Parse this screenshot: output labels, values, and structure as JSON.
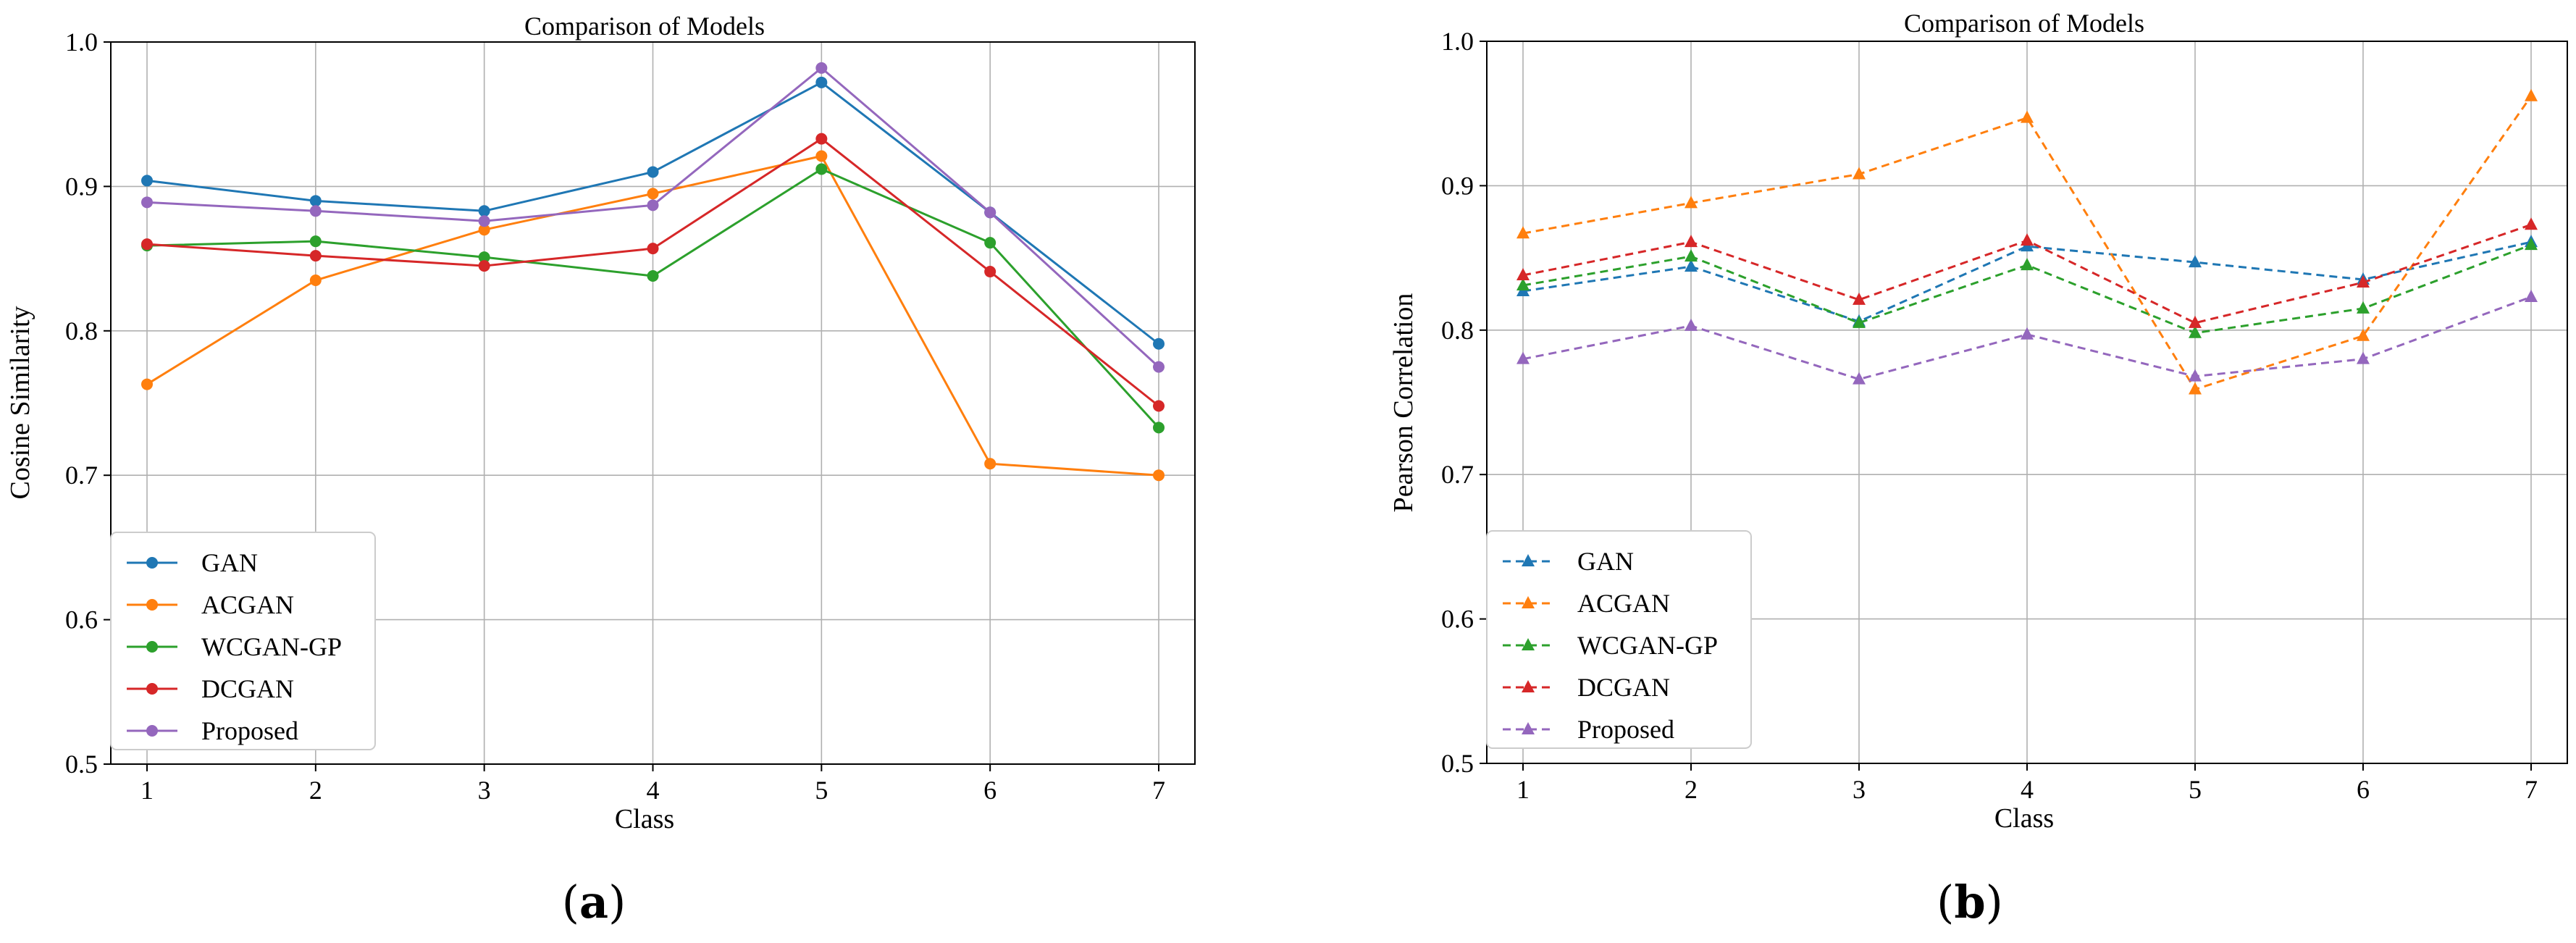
{
  "chart_data": [
    {
      "type": "line",
      "caption_open": "(",
      "caption_letter": "a",
      "caption_close": ")",
      "title": "Comparison of Models",
      "xlabel": "Class",
      "ylabel": "Cosine Similarity",
      "x": [
        1,
        2,
        3,
        4,
        5,
        6,
        7
      ],
      "xticks": [
        "1",
        "2",
        "3",
        "4",
        "5",
        "6",
        "7"
      ],
      "ylim": [
        0.5,
        1.0
      ],
      "yticks": [
        "0.5",
        "0.6",
        "0.7",
        "0.8",
        "0.9",
        "1.0"
      ],
      "grid": true,
      "legend_position": "lower-left",
      "line_style": "solid",
      "marker": "circle",
      "series": [
        {
          "name": "GAN",
          "color": "#1f77b4",
          "values": [
            0.904,
            0.89,
            0.883,
            0.91,
            0.972,
            0.882,
            0.791
          ]
        },
        {
          "name": "ACGAN",
          "color": "#ff7f0e",
          "values": [
            0.763,
            0.835,
            0.87,
            0.895,
            0.921,
            0.708,
            0.7
          ]
        },
        {
          "name": "WCGAN-GP",
          "color": "#2ca02c",
          "values": [
            0.859,
            0.862,
            0.851,
            0.838,
            0.912,
            0.861,
            0.733
          ]
        },
        {
          "name": "DCGAN",
          "color": "#d62728",
          "values": [
            0.86,
            0.852,
            0.845,
            0.857,
            0.933,
            0.841,
            0.748
          ]
        },
        {
          "name": "Proposed",
          "color": "#9467bd",
          "values": [
            0.889,
            0.883,
            0.876,
            0.887,
            0.982,
            0.882,
            0.775
          ]
        }
      ]
    },
    {
      "type": "line",
      "caption_open": "(",
      "caption_letter": "b",
      "caption_close": ")",
      "title": "Comparison of Models",
      "xlabel": "Class",
      "ylabel": "Pearson Correlation",
      "x": [
        1,
        2,
        3,
        4,
        5,
        6,
        7
      ],
      "xticks": [
        "1",
        "2",
        "3",
        "4",
        "5",
        "6",
        "7"
      ],
      "ylim": [
        0.5,
        1.0
      ],
      "yticks": [
        "0.5",
        "0.6",
        "0.7",
        "0.8",
        "0.9",
        "1.0"
      ],
      "grid": true,
      "legend_position": "lower-left",
      "line_style": "dashed",
      "marker": "triangle",
      "series": [
        {
          "name": "GAN",
          "color": "#1f77b4",
          "values": [
            0.827,
            0.844,
            0.806,
            0.858,
            0.847,
            0.835,
            0.861
          ]
        },
        {
          "name": "ACGAN",
          "color": "#ff7f0e",
          "values": [
            0.867,
            0.888,
            0.908,
            0.947,
            0.759,
            0.796,
            0.962
          ]
        },
        {
          "name": "WCGAN-GP",
          "color": "#2ca02c",
          "values": [
            0.831,
            0.851,
            0.805,
            0.845,
            0.798,
            0.815,
            0.859
          ]
        },
        {
          "name": "DCGAN",
          "color": "#d62728",
          "values": [
            0.838,
            0.861,
            0.821,
            0.862,
            0.805,
            0.833,
            0.873
          ]
        },
        {
          "name": "Proposed",
          "color": "#9467bd",
          "values": [
            0.78,
            0.803,
            0.766,
            0.797,
            0.768,
            0.78,
            0.823
          ]
        }
      ]
    }
  ]
}
